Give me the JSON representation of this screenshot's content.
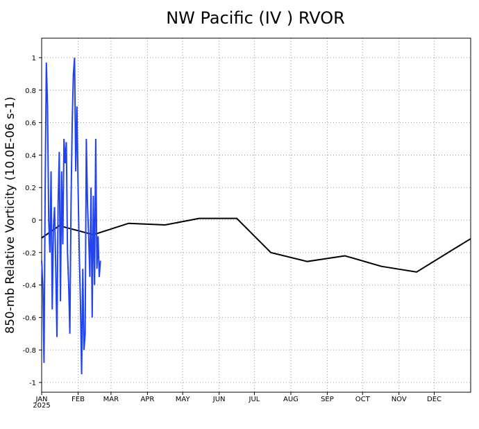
{
  "chart_data": {
    "type": "line",
    "title": "NW Pacific (IV ) RVOR",
    "ylabel": "850-mb Relative Vorticity (10.0E-06 s-1)",
    "year_label": "2025",
    "xlim": [
      0,
      365
    ],
    "ylim": [
      -1.06,
      1.12
    ],
    "xticks": [
      {
        "value": 0,
        "label": "JAN"
      },
      {
        "value": 31,
        "label": "FEB"
      },
      {
        "value": 59,
        "label": "MAR"
      },
      {
        "value": 90,
        "label": "APR"
      },
      {
        "value": 120,
        "label": "MAY"
      },
      {
        "value": 151,
        "label": "JUN"
      },
      {
        "value": 181,
        "label": "JUL"
      },
      {
        "value": 212,
        "label": "AUG"
      },
      {
        "value": 243,
        "label": "SEP"
      },
      {
        "value": 273,
        "label": "OCT"
      },
      {
        "value": 304,
        "label": "NOV"
      },
      {
        "value": 334,
        "label": "DEC"
      }
    ],
    "yticks": [
      -1,
      -0.8,
      -0.6,
      -0.4,
      -0.2,
      0,
      0.2,
      0.4,
      0.6,
      0.8,
      1
    ],
    "grid": true,
    "series": [
      {
        "color": "#000000",
        "x": [
          0,
          15,
          44,
          74,
          105,
          134,
          166,
          195,
          226,
          258,
          289,
          319,
          348,
          365
        ],
        "values": [
          -0.11,
          -0.035,
          -0.09,
          -0.02,
          -0.03,
          0.01,
          0.01,
          -0.2,
          -0.255,
          -0.22,
          -0.285,
          -0.32,
          -0.19,
          -0.115
        ]
      },
      {
        "color": "#2244ee",
        "x": [
          0,
          1,
          2,
          3,
          4,
          5,
          6,
          7,
          8,
          9,
          10,
          11,
          12,
          13,
          14,
          15,
          16,
          17,
          18,
          19,
          20,
          21,
          22,
          23,
          24,
          25,
          26,
          27,
          28,
          29,
          30,
          31,
          32,
          33,
          34,
          35,
          36,
          37,
          38,
          39,
          40,
          41,
          42,
          43,
          44,
          45,
          46,
          47,
          48,
          49,
          50
        ],
        "values": [
          -0.25,
          -0.4,
          -0.88,
          0.2,
          0.97,
          0.7,
          0.0,
          -0.2,
          0.3,
          -0.55,
          -0.05,
          0.08,
          -0.3,
          -0.72,
          0.1,
          0.42,
          -0.5,
          0.3,
          -0.15,
          0.5,
          0.35,
          0.48,
          -0.2,
          -0.4,
          -0.7,
          0.1,
          0.6,
          0.9,
          1.0,
          0.3,
          0.7,
          0.2,
          -0.2,
          -0.5,
          -0.95,
          -0.3,
          -0.8,
          -0.7,
          0.5,
          0.1,
          -0.1,
          -0.35,
          0.2,
          -0.6,
          0.15,
          -0.4,
          0.5,
          -0.3,
          -0.1,
          -0.35,
          -0.25
        ]
      }
    ]
  }
}
